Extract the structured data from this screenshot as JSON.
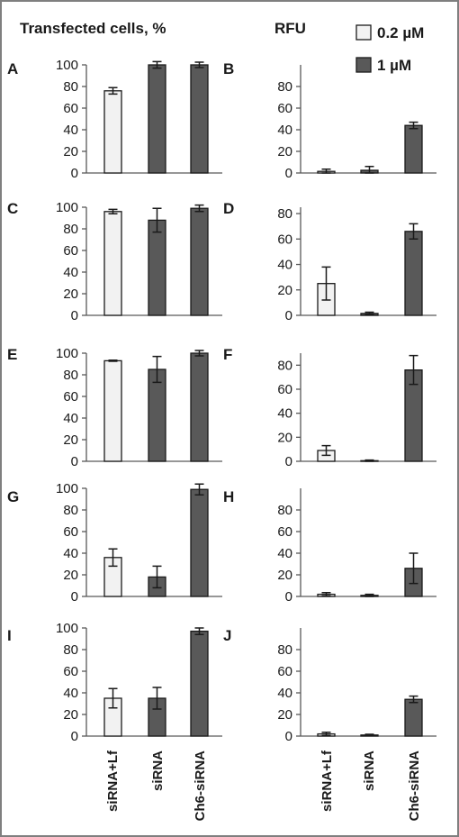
{
  "headers": {
    "left": "Transfected cells, %",
    "right": "RFU"
  },
  "legend": [
    {
      "label": "0.2 µM",
      "color": "#f2f2f2"
    },
    {
      "label": "1 µM",
      "color": "#595959"
    }
  ],
  "colors": {
    "light": "#f2f2f2",
    "dark": "#595959"
  },
  "chart_data": [
    {
      "panel": "A",
      "type": "bar",
      "categories": [
        "siRNA+Lf",
        "siRNA",
        "Ch6-siRNA"
      ],
      "values": [
        76,
        100,
        100
      ],
      "errors": [
        3,
        3,
        2.5
      ],
      "series_of_bar": [
        "0.2 µM",
        "1 µM",
        "1 µM"
      ],
      "ylim": [
        0,
        100
      ],
      "yticks": [
        0,
        20,
        40,
        60,
        80,
        100
      ]
    },
    {
      "panel": "B",
      "type": "bar",
      "categories": [
        "siRNA+Lf",
        "siRNA",
        "Ch6-siRNA"
      ],
      "values": [
        1.5,
        2.5,
        44
      ],
      "errors": [
        2,
        3.5,
        3
      ],
      "series_of_bar": [
        "0.2 µM",
        "1 µM",
        "1 µM"
      ],
      "ylim": [
        0,
        100
      ],
      "yticks": [
        0,
        20,
        40,
        60,
        80
      ]
    },
    {
      "panel": "C",
      "type": "bar",
      "categories": [
        "siRNA+Lf",
        "siRNA",
        "Ch6-siRNA"
      ],
      "values": [
        96,
        88,
        99
      ],
      "errors": [
        2,
        11,
        3
      ],
      "series_of_bar": [
        "0.2 µM",
        "1 µM",
        "1 µM"
      ],
      "ylim": [
        0,
        100
      ],
      "yticks": [
        0,
        20,
        40,
        60,
        80,
        100
      ]
    },
    {
      "panel": "D",
      "type": "bar",
      "categories": [
        "siRNA+Lf",
        "siRNA",
        "Ch6-siRNA"
      ],
      "values": [
        25,
        1.5,
        66
      ],
      "errors": [
        13,
        1,
        6
      ],
      "series_of_bar": [
        "0.2 µM",
        "1 µM",
        "1 µM"
      ],
      "ylim": [
        0,
        85
      ],
      "yticks": [
        0,
        20,
        40,
        60,
        80
      ]
    },
    {
      "panel": "E",
      "type": "bar",
      "categories": [
        "siRNA+Lf",
        "siRNA",
        "Ch6-siRNA"
      ],
      "values": [
        93,
        85,
        100
      ],
      "errors": [
        0.5,
        12,
        2.5
      ],
      "series_of_bar": [
        "0.2 µM",
        "1 µM",
        "1 µM"
      ],
      "ylim": [
        0,
        100
      ],
      "yticks": [
        0,
        20,
        40,
        60,
        80,
        100
      ]
    },
    {
      "panel": "F",
      "type": "bar",
      "categories": [
        "siRNA+Lf",
        "siRNA",
        "Ch6-siRNA"
      ],
      "values": [
        9,
        0.5,
        76
      ],
      "errors": [
        4,
        0.5,
        12
      ],
      "series_of_bar": [
        "0.2 µM",
        "1 µM",
        "1 µM"
      ],
      "ylim": [
        0,
        90
      ],
      "yticks": [
        0,
        20,
        40,
        60,
        80
      ]
    },
    {
      "panel": "G",
      "type": "bar",
      "categories": [
        "siRNA+Lf",
        "siRNA",
        "Ch6-siRNA"
      ],
      "values": [
        36,
        18,
        99
      ],
      "errors": [
        8,
        10,
        5
      ],
      "series_of_bar": [
        "0.2 µM",
        "1 µM",
        "1 µM"
      ],
      "ylim": [
        0,
        100
      ],
      "yticks": [
        0,
        20,
        40,
        60,
        80,
        100
      ]
    },
    {
      "panel": "H",
      "type": "bar",
      "categories": [
        "siRNA+Lf",
        "siRNA",
        "Ch6-siRNA"
      ],
      "values": [
        2,
        1,
        26
      ],
      "errors": [
        1.5,
        1,
        14
      ],
      "series_of_bar": [
        "0.2 µM",
        "1 µM",
        "1 µM"
      ],
      "ylim": [
        0,
        100
      ],
      "yticks": [
        0,
        20,
        40,
        60,
        80
      ]
    },
    {
      "panel": "I",
      "type": "bar",
      "categories": [
        "siRNA+Lf",
        "siRNA",
        "Ch6-siRNA"
      ],
      "values": [
        35,
        35,
        97
      ],
      "errors": [
        9,
        10,
        3
      ],
      "series_of_bar": [
        "0.2 µM",
        "1 µM",
        "1 µM"
      ],
      "ylim": [
        0,
        100
      ],
      "yticks": [
        0,
        20,
        40,
        60,
        80,
        100
      ]
    },
    {
      "panel": "J",
      "type": "bar",
      "categories": [
        "siRNA+Lf",
        "siRNA",
        "Ch6-siRNA"
      ],
      "values": [
        2,
        1,
        34
      ],
      "errors": [
        1.5,
        0.7,
        3
      ],
      "series_of_bar": [
        "0.2 µM",
        "1 µM",
        "1 µM"
      ],
      "ylim": [
        0,
        100
      ],
      "yticks": [
        0,
        20,
        40,
        60,
        80
      ]
    }
  ]
}
